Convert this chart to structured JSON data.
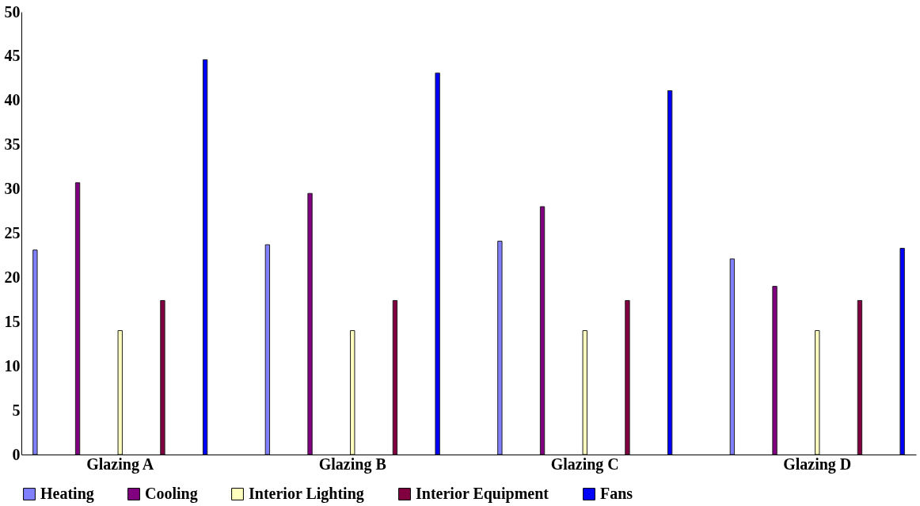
{
  "chart_data": {
    "type": "bar",
    "categories": [
      "Glazing A",
      "Glazing B",
      "Glazing C",
      "Glazing D"
    ],
    "series": [
      {
        "name": "Heating",
        "color": "#8080ff",
        "values": [
          23.1,
          23.7,
          24.1,
          22.1
        ]
      },
      {
        "name": "Cooling",
        "color": "#800080",
        "values": [
          30.7,
          29.5,
          28.0,
          19.0
        ]
      },
      {
        "name": "Interior Lighting",
        "color": "#ffffc0",
        "values": [
          14.0,
          14.0,
          14.0,
          14.0
        ]
      },
      {
        "name": "Interior Equipment",
        "color": "#800040",
        "values": [
          17.4,
          17.4,
          17.4,
          17.4
        ]
      },
      {
        "name": "Fans",
        "color": "#0000ff",
        "values": [
          44.6,
          43.1,
          41.1,
          23.3
        ]
      }
    ],
    "ylim": [
      0,
      50
    ],
    "yticks": [
      0,
      5,
      10,
      15,
      20,
      25,
      30,
      35,
      40,
      45,
      50
    ],
    "grid": false,
    "legend": "bottom"
  }
}
